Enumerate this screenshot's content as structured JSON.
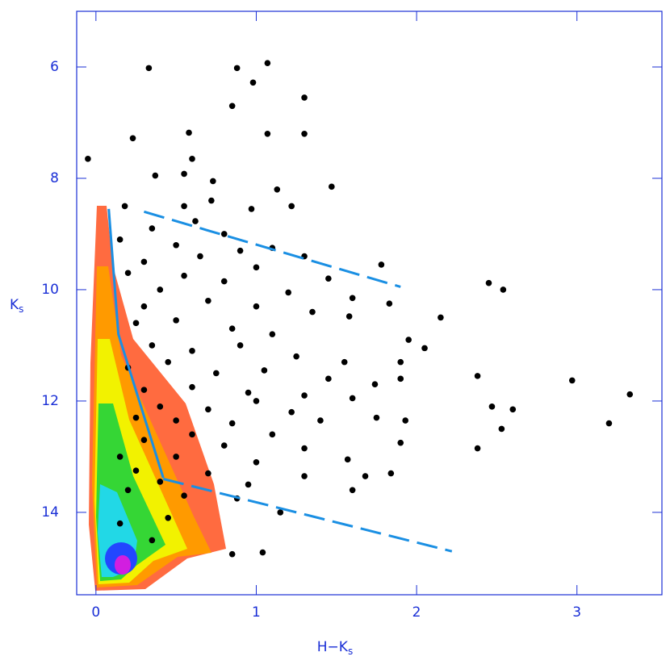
{
  "chart_data": {
    "type": "scatter",
    "x_label": {
      "text": "H−K",
      "subscript": "s"
    },
    "y_label": {
      "text": "K",
      "subscript": "s"
    },
    "xlim": [
      -0.12,
      3.53
    ],
    "ylim": [
      5.0,
      15.48
    ],
    "y_inverted": true,
    "xticks": [
      0,
      1,
      2,
      3
    ],
    "yticks": [
      6,
      8,
      10,
      12,
      14
    ],
    "points": {
      "color": "#000000",
      "x": [
        0.33,
        0.88,
        1.07,
        0.98,
        1.3,
        0.85,
        0.58,
        1.07,
        1.3,
        0.23,
        -0.05,
        0.6,
        0.37,
        0.55,
        0.73,
        1.47,
        1.13,
        0.72,
        1.22,
        0.55,
        0.97,
        0.18,
        0.62,
        0.35,
        0.8,
        0.15,
        0.5,
        0.9,
        1.1,
        1.3,
        1.78,
        0.3,
        0.65,
        1.0,
        1.45,
        0.2,
        0.55,
        0.8,
        2.45,
        2.54,
        0.4,
        1.2,
        1.6,
        0.3,
        0.7,
        1.0,
        1.35,
        1.83,
        2.15,
        1.58,
        0.25,
        0.5,
        0.85,
        1.1,
        1.95,
        2.05,
        0.35,
        0.6,
        0.9,
        1.25,
        1.55,
        1.9,
        0.2,
        0.45,
        0.75,
        1.05,
        1.45,
        2.38,
        2.97,
        1.74,
        1.9,
        3.33,
        0.3,
        0.6,
        0.95,
        1.3,
        1.6,
        0.4,
        0.7,
        1.0,
        1.22,
        2.47,
        2.6,
        1.75,
        1.93,
        0.25,
        0.5,
        0.85,
        1.4,
        3.2,
        2.53,
        0.6,
        1.1,
        1.9,
        0.3,
        0.8,
        1.3,
        2.38,
        0.15,
        0.5,
        1.0,
        1.57,
        0.25,
        0.7,
        1.3,
        1.68,
        1.84,
        0.4,
        0.95,
        1.6,
        0.2,
        0.55,
        0.88,
        1.15,
        0.15,
        0.35,
        0.85,
        1.04,
        0.45
      ],
      "y": [
        6.02,
        6.02,
        5.93,
        6.28,
        6.55,
        6.7,
        7.18,
        7.2,
        7.2,
        7.28,
        7.65,
        7.65,
        7.95,
        7.92,
        8.05,
        8.15,
        8.2,
        8.4,
        8.5,
        8.5,
        8.55,
        8.5,
        8.77,
        8.9,
        9.0,
        9.1,
        9.2,
        9.3,
        9.25,
        9.4,
        9.55,
        9.5,
        9.4,
        9.6,
        9.8,
        9.7,
        9.75,
        9.85,
        9.88,
        10.0,
        10.0,
        10.05,
        10.15,
        10.3,
        10.2,
        10.3,
        10.4,
        10.25,
        10.5,
        10.48,
        10.6,
        10.55,
        10.7,
        10.8,
        10.9,
        11.05,
        11.0,
        11.1,
        11.0,
        11.2,
        11.3,
        11.3,
        11.4,
        11.3,
        11.5,
        11.45,
        11.6,
        11.55,
        11.63,
        11.7,
        11.6,
        11.88,
        11.8,
        11.75,
        11.85,
        11.9,
        11.95,
        12.1,
        12.15,
        12.0,
        12.2,
        12.1,
        12.15,
        12.3,
        12.35,
        12.3,
        12.35,
        12.4,
        12.35,
        12.4,
        12.5,
        12.6,
        12.6,
        12.75,
        12.7,
        12.8,
        12.85,
        12.85,
        13.0,
        13.0,
        13.1,
        13.05,
        13.25,
        13.3,
        13.35,
        13.35,
        13.3,
        13.45,
        13.5,
        13.6,
        13.6,
        13.7,
        13.75,
        14.0,
        14.2,
        14.5,
        14.75,
        14.72,
        14.1
      ]
    },
    "lines": [
      {
        "color": "#1a8fe3",
        "dashed": false,
        "x": [
          0.08,
          0.14,
          0.42
        ],
        "y": [
          8.55,
          10.8,
          13.38
        ]
      },
      {
        "color": "#1a8fe3",
        "dashed": true,
        "x": [
          0.3,
          1.9
        ],
        "y": [
          8.6,
          9.95
        ]
      },
      {
        "color": "#1a8fe3",
        "dashed": true,
        "x": [
          0.42,
          2.22
        ],
        "y": [
          13.4,
          14.7
        ]
      }
    ]
  }
}
